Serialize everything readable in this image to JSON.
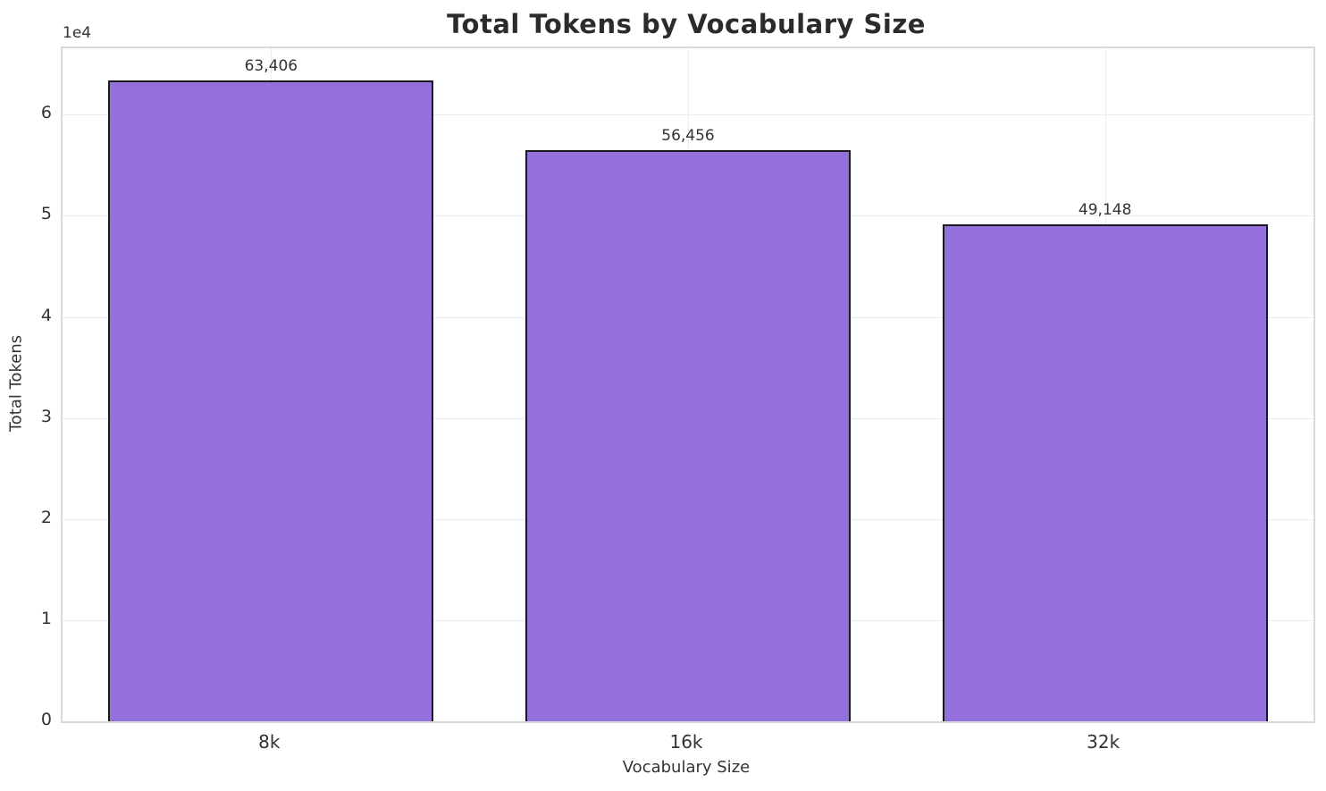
{
  "chart_data": {
    "type": "bar",
    "title": "Total Tokens by Vocabulary Size",
    "xlabel": "Vocabulary Size",
    "ylabel": "Total Tokens",
    "categories": [
      "8k",
      "16k",
      "32k"
    ],
    "values": [
      63406,
      56456,
      49148
    ],
    "value_labels": [
      "63,406",
      "56,456",
      "49,148"
    ],
    "y_offset_label": "1e4",
    "y_tick_labels": [
      "0",
      "1",
      "2",
      "3",
      "4",
      "5",
      "6"
    ],
    "y_tick_values": [
      0,
      10000,
      20000,
      30000,
      40000,
      50000,
      60000
    ],
    "ylim": [
      0,
      66576
    ],
    "grid": true,
    "legend": null,
    "colors": {
      "bar_fill": "#9370DB",
      "bar_edge": "#1a1a1a",
      "grid": "#ececec",
      "spine": "#d9d9d9",
      "text": "#333333",
      "title": "#2b2b2b",
      "background": "#ffffff"
    }
  }
}
